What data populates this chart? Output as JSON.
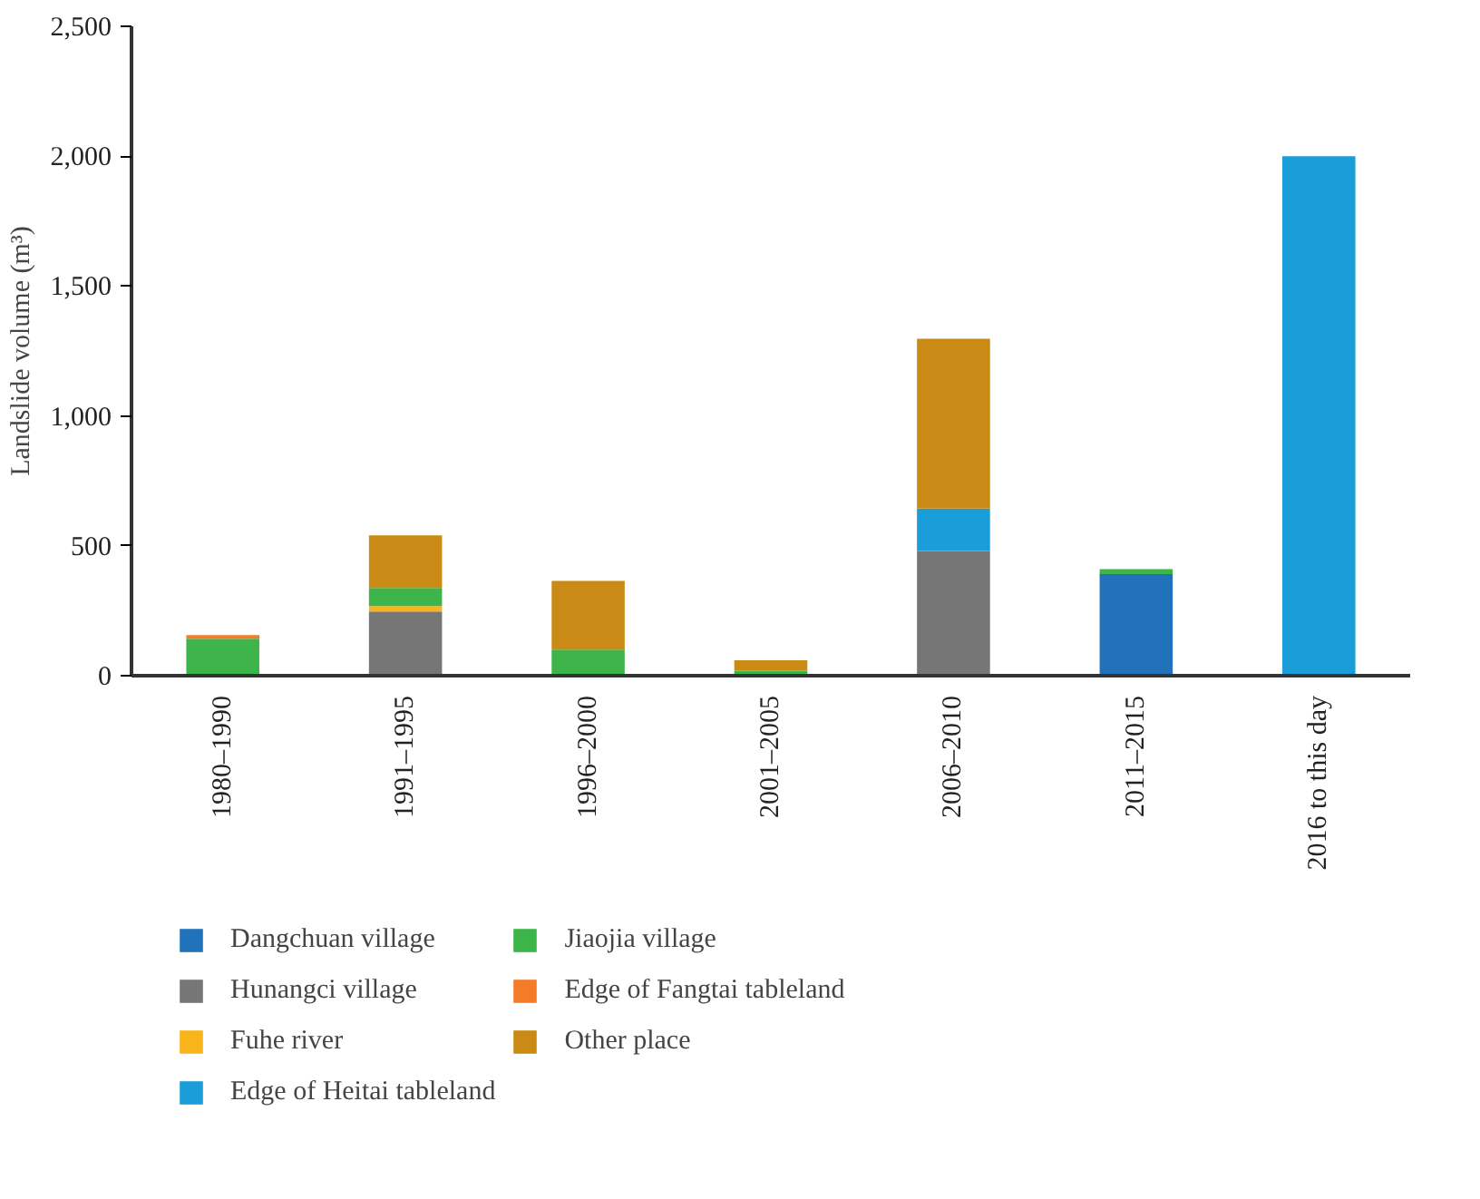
{
  "chart_data": {
    "type": "bar",
    "stacked": true,
    "ylabel": "Landslide volume (m³)",
    "categories": [
      "1980–1990",
      "1991–1995",
      "1996–2000",
      "2001–2005",
      "2006–2010",
      "2011–2015",
      "2016 to this day"
    ],
    "series": [
      {
        "name": "Dangchuan village",
        "color": "#2172ba",
        "values": [
          null,
          null,
          null,
          null,
          null,
          391,
          null
        ]
      },
      {
        "name": "Hunangci village",
        "color": "#767676",
        "values": [
          null,
          247,
          null,
          null,
          480,
          null,
          null
        ]
      },
      {
        "name": "Fuhe river",
        "color": "#f9b31b",
        "values": [
          null,
          21,
          null,
          null,
          null,
          null,
          null
        ]
      },
      {
        "name": "Edge of Heitai tableland",
        "color": "#1a9dd8",
        "values": [
          null,
          null,
          null,
          null,
          163,
          null,
          2000
        ]
      },
      {
        "name": "Jiaojia village",
        "color": "#3db54a",
        "values": [
          142,
          70,
          100,
          19,
          null,
          19,
          null
        ]
      },
      {
        "name": "Edge of Fangtai tableland",
        "color": "#f47b2a",
        "values": [
          14,
          null,
          null,
          null,
          null,
          null,
          null
        ]
      },
      {
        "name": "Other place",
        "color": "#c98b15",
        "values": [
          null,
          202,
          265,
          40,
          654,
          null,
          null
        ]
      }
    ],
    "ylim": [
      0,
      2500
    ],
    "yticks": [
      0,
      500,
      {
        "value": 1000,
        "label": "1,000"
      },
      {
        "value": 1500,
        "label": "1,500"
      },
      {
        "value": 2000,
        "label": "2,000"
      },
      {
        "value": 2500,
        "label": "2,500"
      }
    ],
    "grid": false,
    "legend": "bottom"
  }
}
